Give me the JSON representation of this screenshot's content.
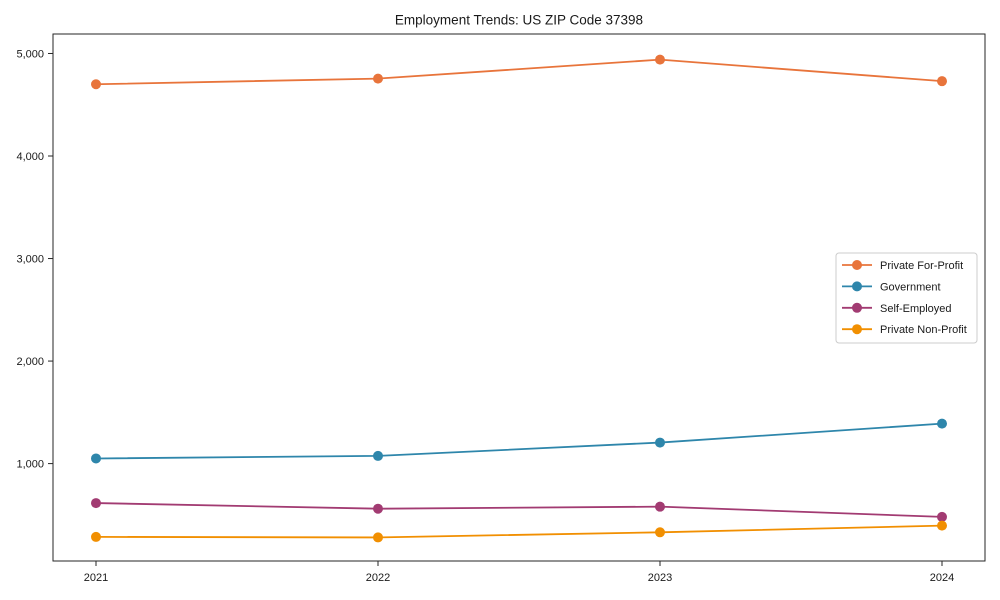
{
  "figure": {
    "background": "#ffffff",
    "axis_color": "#262626",
    "text_color": "#1a1a1a"
  },
  "chart_data": {
    "type": "line",
    "title": "Employment Trends: US ZIP Code 37398",
    "categories": [
      "2021",
      "2022",
      "2023",
      "2024"
    ],
    "series": [
      {
        "name": "Private For-Profit",
        "color": "#e8743b",
        "values": [
          4700,
          4755,
          4940,
          4730
        ]
      },
      {
        "name": "Government",
        "color": "#2e86ab",
        "values": [
          1050,
          1075,
          1205,
          1390
        ]
      },
      {
        "name": "Self-Employed",
        "color": "#a23b72",
        "values": [
          615,
          560,
          580,
          480
        ]
      },
      {
        "name": "Private Non-Profit",
        "color": "#f18f01",
        "values": [
          285,
          280,
          330,
          395
        ]
      }
    ],
    "xlabel": "",
    "ylabel": "",
    "ylim": [
      50,
      5190
    ],
    "yticks": [
      1000,
      2000,
      3000,
      4000,
      5000
    ],
    "ytick_labels": [
      "1,000",
      "2,000",
      "3,000",
      "4,000",
      "5,000"
    ],
    "grid": false,
    "marker": "circle",
    "legend": {
      "position": "right",
      "background": "#ffffff",
      "border_color": "#cccccc"
    }
  }
}
